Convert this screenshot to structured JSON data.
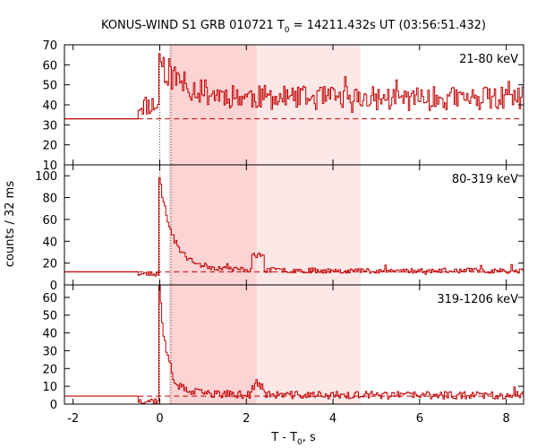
{
  "chart_data": {
    "type": "line",
    "title_main": "KONUS-WIND S1 GRB 010721 T",
    "title_sub": "0",
    "title_rest": " = 14211.432s UT (03:56:51.432)",
    "xlabel_main": "T - T",
    "xlabel_sub": "0",
    "xlabel_rest": ", s",
    "ylabel": "counts / 32 ms",
    "xlim": [
      -2.2,
      8.4
    ],
    "xticks": [
      -2,
      0,
      2,
      4,
      6,
      8
    ],
    "xtick_labels": [
      "-2",
      "0",
      "2",
      "4",
      "6",
      "8"
    ],
    "line_color": "#c00000",
    "shade_dark": "#fcd4d4",
    "shade_light": "#fde8e8",
    "shaded_intervals": [
      [
        0.22,
        2.24
      ],
      [
        2.24,
        4.64
      ]
    ],
    "dotted_lines_x": [
      0.0,
      0.26
    ],
    "panels": [
      {
        "label": "21-80 keV",
        "ylim": [
          10,
          70
        ],
        "yticks": [
          10,
          20,
          30,
          40,
          50,
          60,
          70
        ],
        "ytick_labels": [
          "10",
          "20",
          "30",
          "40",
          "50",
          "60",
          "70"
        ],
        "background": 33,
        "bg_end": -0.5,
        "mean": 43,
        "spread": 5,
        "peak": 18,
        "decay": 0.5,
        "tail": 2,
        "tail_decay": 2.0,
        "extra_peak": 0,
        "seed": 11
      },
      {
        "label": "80-319 keV",
        "ylim": [
          0,
          110
        ],
        "yticks": [
          0,
          20,
          40,
          60,
          80,
          100
        ],
        "ytick_labels": [
          "0",
          "20",
          "40",
          "60",
          "80",
          "100"
        ],
        "background": 12,
        "bg_end": -0.5,
        "mean": 13,
        "spread": 2,
        "peak": 80,
        "decay": 0.28,
        "tail": 7,
        "tail_decay": 1.1,
        "extra_peak": 13,
        "seed": 23
      },
      {
        "label": "319-1206 keV",
        "ylim": [
          0,
          67
        ],
        "yticks": [
          0,
          10,
          20,
          30,
          40,
          50,
          60
        ],
        "ytick_labels": [
          "0",
          "10",
          "20",
          "30",
          "40",
          "50",
          "60"
        ],
        "background": 4.5,
        "bg_end": -0.5,
        "mean": 5,
        "spread": 1.8,
        "peak": 57,
        "decay": 0.16,
        "tail": 3,
        "tail_decay": 0.9,
        "extra_peak": 5,
        "seed": 37
      }
    ]
  }
}
